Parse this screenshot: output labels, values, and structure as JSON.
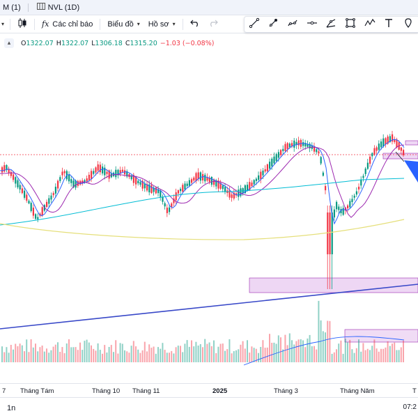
{
  "tabs": [
    {
      "label": "M (1)"
    },
    {
      "label": "NVL (1D)"
    }
  ],
  "toolbar": {
    "indicators_label": "Các chỉ báo",
    "chart_type_label": "Biểu đồ",
    "profile_label": "Hồ sơ"
  },
  "legend": {
    "o_label": "O",
    "o_value": "1322.07",
    "h_label": "H",
    "h_value": "1322.07",
    "l_label": "L",
    "l_value": "1306.18",
    "c_label": "C",
    "c_value": "1315.20",
    "change": "−1.03 (−0.08%)"
  },
  "timeframe_label": "1n",
  "clock_text": "07:2",
  "drawing_tools": [
    "trendline-icon",
    "brush-icon",
    "pattern-icon",
    "horizontal-line-icon",
    "projection-icon",
    "rectangle-icon",
    "wave-icon",
    "text-icon",
    "pin-icon"
  ],
  "colors": {
    "up": "#089981",
    "down": "#f23645",
    "ma_short": "#2962ff",
    "ma_mid": "#9c27b0",
    "ma_long": "#00bcd4",
    "ma_slow": "#e5df7a",
    "trendline": "#3848c8",
    "zone": "#e8c9f0"
  },
  "chart_data": {
    "type": "candlestick",
    "x_tick_labels": [
      "7",
      "Tháng Tám",
      "Tháng 10",
      "Tháng 11",
      "2025",
      "Tháng 3",
      "Tháng Năm",
      "T"
    ],
    "bold_tick_labels": [
      "2025"
    ],
    "last_ohlc": {
      "open": 1322.07,
      "high": 1322.07,
      "low": 1306.18,
      "close": 1315.2
    },
    "last_change": -1.03,
    "last_change_pct": -0.08
  }
}
